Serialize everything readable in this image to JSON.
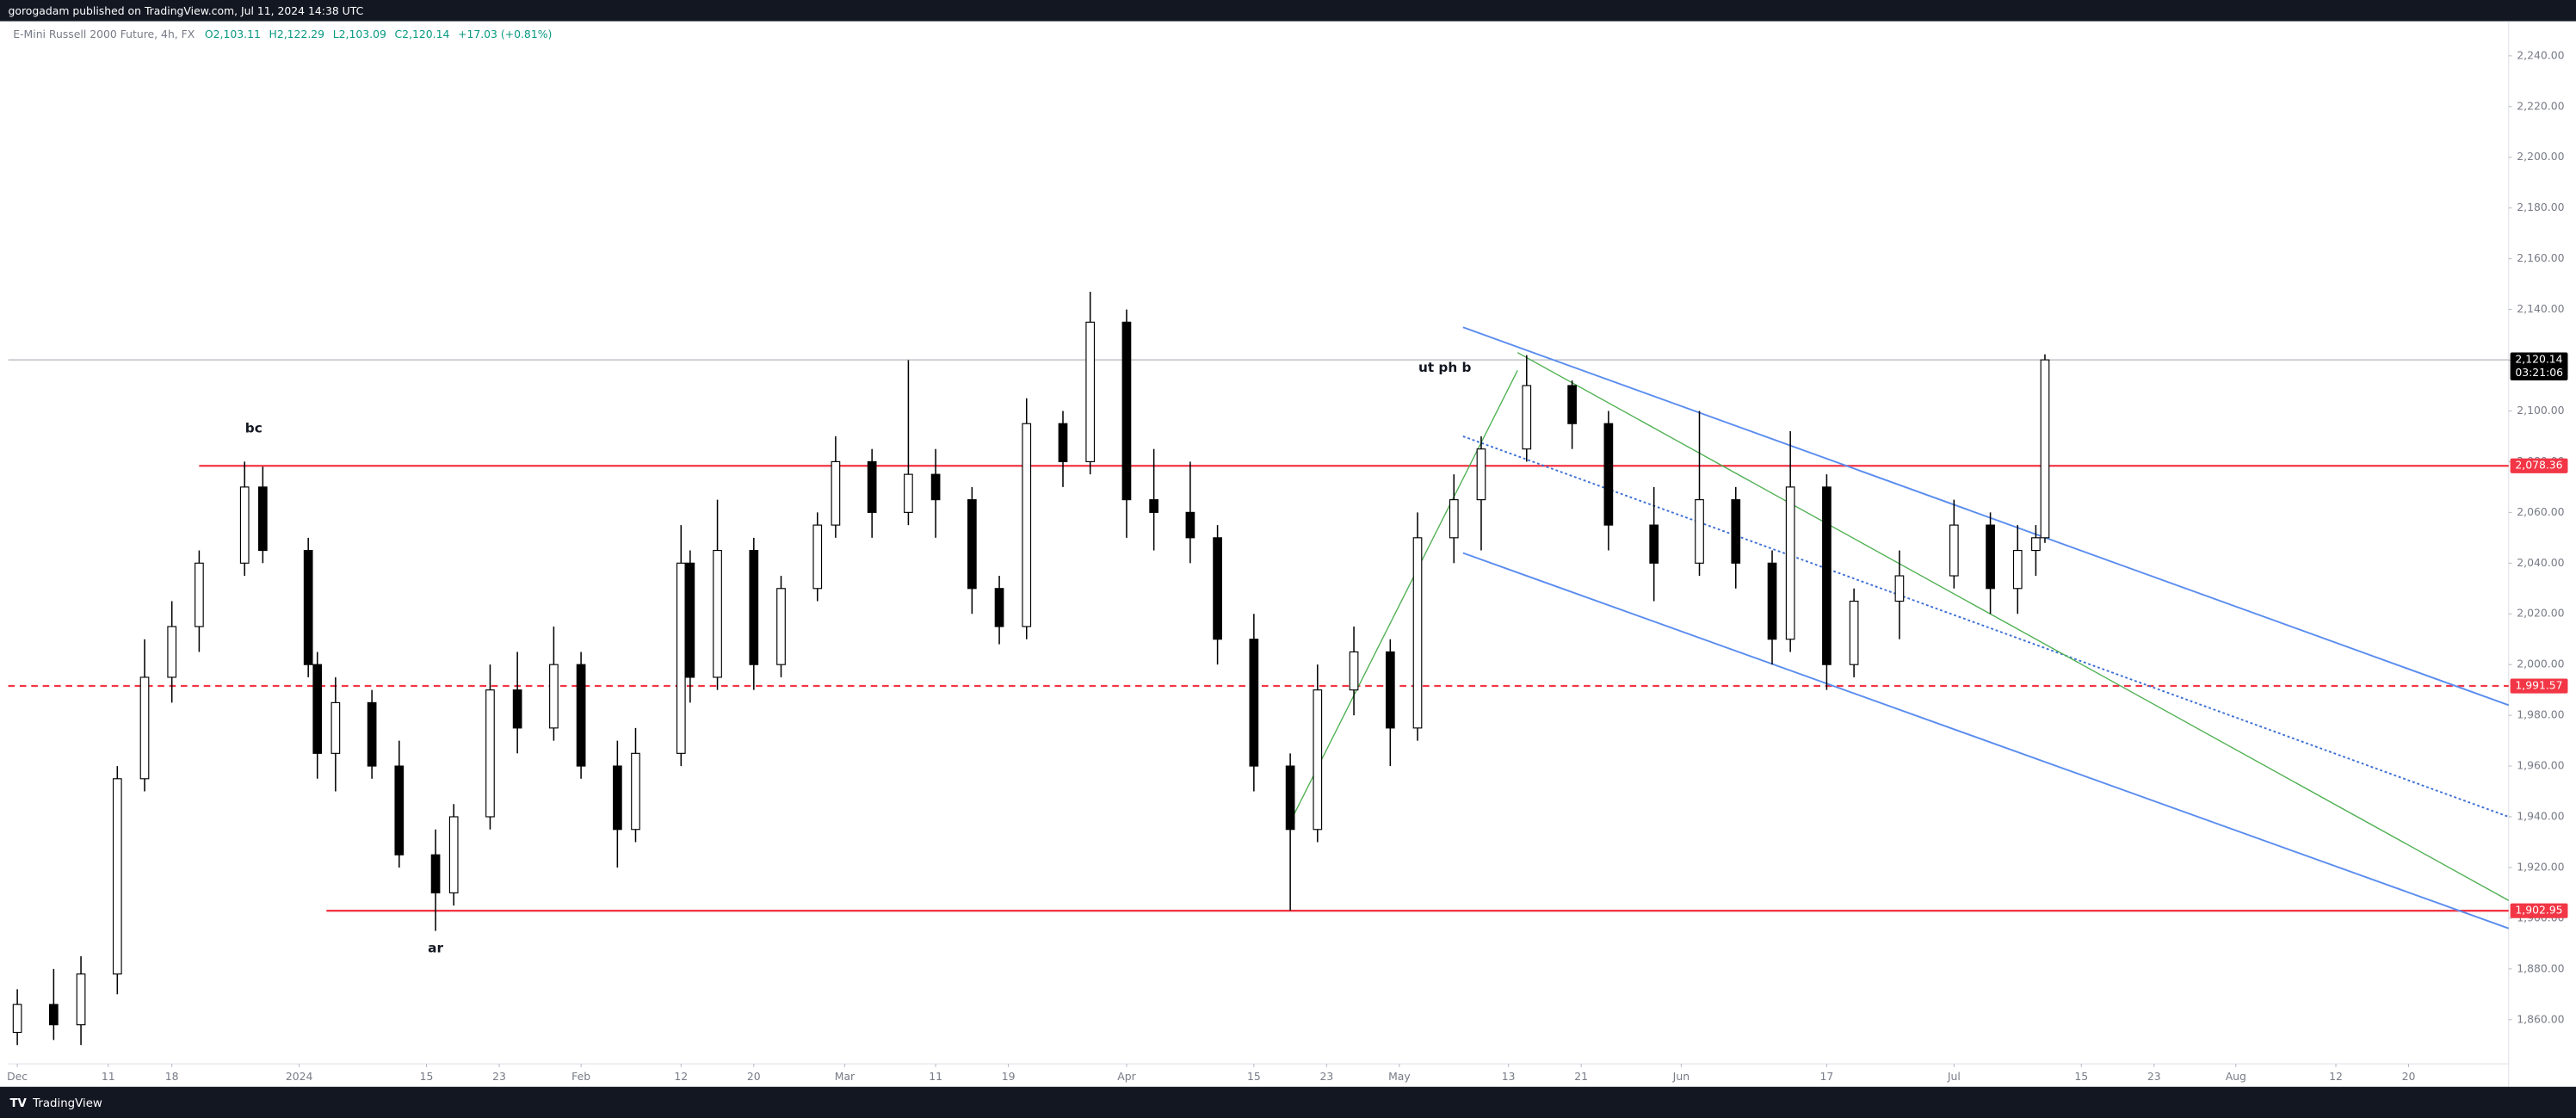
{
  "header": {
    "published": "gorogadam published on TradingView.com, Jul 11, 2024 14:38 UTC"
  },
  "footer": {
    "brand": "TradingView"
  },
  "chart_data": {
    "type": "candlestick",
    "title": "E-Mini Russell 2000 Future, 4h, FX",
    "ohlc_header": [
      "O2,103.11",
      "H2,122.29",
      "L2,103.09",
      "C2,120.14",
      "+17.03 (+0.81%)"
    ],
    "up_color": "#ffffff",
    "down_color": "#000000",
    "outline_color": "#000000",
    "xlim": [
      "2023-11-30",
      "2024-08-31"
    ],
    "xticks": [
      {
        "value": "2023-12-01",
        "label": "Dec"
      },
      {
        "value": "2023-12-11",
        "label": "11"
      },
      {
        "value": "2023-12-18",
        "label": "18"
      },
      {
        "value": "2024-01-01",
        "label": "2024"
      },
      {
        "value": "2024-01-15",
        "label": "15"
      },
      {
        "value": "2024-01-23",
        "label": "23"
      },
      {
        "value": "2024-02-01",
        "label": "Feb"
      },
      {
        "value": "2024-02-12",
        "label": "12"
      },
      {
        "value": "2024-02-20",
        "label": "20"
      },
      {
        "value": "2024-03-01",
        "label": "Mar"
      },
      {
        "value": "2024-03-11",
        "label": "11"
      },
      {
        "value": "2024-03-19",
        "label": "19"
      },
      {
        "value": "2024-04-01",
        "label": "Apr"
      },
      {
        "value": "2024-04-15",
        "label": "15"
      },
      {
        "value": "2024-04-23",
        "label": "23"
      },
      {
        "value": "2024-05-01",
        "label": "May"
      },
      {
        "value": "2024-05-13",
        "label": "13"
      },
      {
        "value": "2024-05-21",
        "label": "21"
      },
      {
        "value": "2024-06-01",
        "label": "Jun"
      },
      {
        "value": "2024-06-17",
        "label": "17"
      },
      {
        "value": "2024-07-01",
        "label": "Jul"
      },
      {
        "value": "2024-07-15",
        "label": "15"
      },
      {
        "value": "2024-07-23",
        "label": "23"
      },
      {
        "value": "2024-08-01",
        "label": "Aug"
      },
      {
        "value": "2024-08-12",
        "label": "12"
      },
      {
        "value": "2024-08-20",
        "label": "20"
      }
    ],
    "ylim": [
      1842.6,
      2253.6
    ],
    "yticks": [
      {
        "value": 1860,
        "label": "1,860.00"
      },
      {
        "value": 1880,
        "label": "1,880.00"
      },
      {
        "value": 1900,
        "label": "1,900.00"
      },
      {
        "value": 1920,
        "label": "1,920.00"
      },
      {
        "value": 1940,
        "label": "1,940.00"
      },
      {
        "value": 1960,
        "label": "1,960.00"
      },
      {
        "value": 1980,
        "label": "1,980.00"
      },
      {
        "value": 2000,
        "label": "2,000.00"
      },
      {
        "value": 2020,
        "label": "2,020.00"
      },
      {
        "value": 2040,
        "label": "2,040.00"
      },
      {
        "value": 2060,
        "label": "2,060.00"
      },
      {
        "value": 2080,
        "label": "2,080.00"
      },
      {
        "value": 2100,
        "label": "2,100.00"
      },
      {
        "value": 2120,
        "label": "2,120.00"
      },
      {
        "value": 2140,
        "label": "2,140.00"
      },
      {
        "value": 2160,
        "label": "2,160.00"
      },
      {
        "value": 2180,
        "label": "2,180.00"
      },
      {
        "value": 2200,
        "label": "2,200.00"
      },
      {
        "value": 2220,
        "label": "2,220.00"
      },
      {
        "value": 2240,
        "label": "2,240.00"
      }
    ],
    "candles": [
      {
        "date": "2023-12-01",
        "open": 1855,
        "high": 1872,
        "low": 1850,
        "close": 1866
      },
      {
        "date": "2023-12-05",
        "open": 1866,
        "high": 1880,
        "low": 1852,
        "close": 1858
      },
      {
        "date": "2023-12-08",
        "open": 1858,
        "high": 1885,
        "low": 1850,
        "close": 1878
      },
      {
        "date": "2023-12-12",
        "open": 1878,
        "high": 1960,
        "low": 1870,
        "close": 1955
      },
      {
        "date": "2023-12-15",
        "open": 1955,
        "high": 2010,
        "low": 1950,
        "close": 1995
      },
      {
        "date": "2023-12-18",
        "open": 1995,
        "high": 2025,
        "low": 1985,
        "close": 2015
      },
      {
        "date": "2023-12-21",
        "open": 2015,
        "high": 2045,
        "low": 2005,
        "close": 2040
      },
      {
        "date": "2023-12-26",
        "open": 2040,
        "high": 2080,
        "low": 2035,
        "close": 2070
      },
      {
        "date": "2023-12-28",
        "open": 2070,
        "high": 2078,
        "low": 2040,
        "close": 2045
      },
      {
        "date": "2024-01-02",
        "open": 2045,
        "high": 2050,
        "low": 1995,
        "close": 2000
      },
      {
        "date": "2024-01-03",
        "open": 2000,
        "high": 2005,
        "low": 1955,
        "close": 1965
      },
      {
        "date": "2024-01-05",
        "open": 1965,
        "high": 1995,
        "low": 1950,
        "close": 1985
      },
      {
        "date": "2024-01-09",
        "open": 1985,
        "high": 1990,
        "low": 1955,
        "close": 1960
      },
      {
        "date": "2024-01-12",
        "open": 1960,
        "high": 1970,
        "low": 1920,
        "close": 1925
      },
      {
        "date": "2024-01-16",
        "open": 1925,
        "high": 1935,
        "low": 1895,
        "close": 1910
      },
      {
        "date": "2024-01-18",
        "open": 1910,
        "high": 1945,
        "low": 1905,
        "close": 1940
      },
      {
        "date": "2024-01-22",
        "open": 1940,
        "high": 2000,
        "low": 1935,
        "close": 1990
      },
      {
        "date": "2024-01-25",
        "open": 1990,
        "high": 2005,
        "low": 1965,
        "close": 1975
      },
      {
        "date": "2024-01-29",
        "open": 1975,
        "high": 2015,
        "low": 1970,
        "close": 2000
      },
      {
        "date": "2024-02-01",
        "open": 2000,
        "high": 2005,
        "low": 1955,
        "close": 1960
      },
      {
        "date": "2024-02-05",
        "open": 1960,
        "high": 1970,
        "low": 1920,
        "close": 1935
      },
      {
        "date": "2024-02-07",
        "open": 1935,
        "high": 1975,
        "low": 1930,
        "close": 1965
      },
      {
        "date": "2024-02-12",
        "open": 1965,
        "high": 2055,
        "low": 1960,
        "close": 2040
      },
      {
        "date": "2024-02-13",
        "open": 2040,
        "high": 2045,
        "low": 1985,
        "close": 1995
      },
      {
        "date": "2024-02-16",
        "open": 1995,
        "high": 2065,
        "low": 1990,
        "close": 2045
      },
      {
        "date": "2024-02-20",
        "open": 2045,
        "high": 2050,
        "low": 1990,
        "close": 2000
      },
      {
        "date": "2024-02-23",
        "open": 2000,
        "high": 2035,
        "low": 1995,
        "close": 2030
      },
      {
        "date": "2024-02-27",
        "open": 2030,
        "high": 2060,
        "low": 2025,
        "close": 2055
      },
      {
        "date": "2024-02-29",
        "open": 2055,
        "high": 2090,
        "low": 2050,
        "close": 2080
      },
      {
        "date": "2024-03-04",
        "open": 2080,
        "high": 2085,
        "low": 2050,
        "close": 2060
      },
      {
        "date": "2024-03-08",
        "open": 2060,
        "high": 2120,
        "low": 2055,
        "close": 2075
      },
      {
        "date": "2024-03-11",
        "open": 2075,
        "high": 2085,
        "low": 2050,
        "close": 2065
      },
      {
        "date": "2024-03-15",
        "open": 2065,
        "high": 2070,
        "low": 2020,
        "close": 2030
      },
      {
        "date": "2024-03-18",
        "open": 2030,
        "high": 2035,
        "low": 2008,
        "close": 2015
      },
      {
        "date": "2024-03-21",
        "open": 2015,
        "high": 2105,
        "low": 2010,
        "close": 2095
      },
      {
        "date": "2024-03-25",
        "open": 2095,
        "high": 2100,
        "low": 2070,
        "close": 2080
      },
      {
        "date": "2024-03-28",
        "open": 2080,
        "high": 2147,
        "low": 2075,
        "close": 2135
      },
      {
        "date": "2024-04-01",
        "open": 2135,
        "high": 2140,
        "low": 2050,
        "close": 2065
      },
      {
        "date": "2024-04-04",
        "open": 2065,
        "high": 2085,
        "low": 2045,
        "close": 2060
      },
      {
        "date": "2024-04-08",
        "open": 2060,
        "high": 2080,
        "low": 2040,
        "close": 2050
      },
      {
        "date": "2024-04-11",
        "open": 2050,
        "high": 2055,
        "low": 2000,
        "close": 2010
      },
      {
        "date": "2024-04-15",
        "open": 2010,
        "high": 2020,
        "low": 1950,
        "close": 1960
      },
      {
        "date": "2024-04-19",
        "open": 1960,
        "high": 1965,
        "low": 1903,
        "close": 1935
      },
      {
        "date": "2024-04-22",
        "open": 1935,
        "high": 2000,
        "low": 1930,
        "close": 1990
      },
      {
        "date": "2024-04-26",
        "open": 1990,
        "high": 2015,
        "low": 1980,
        "close": 2005
      },
      {
        "date": "2024-04-30",
        "open": 2005,
        "high": 2010,
        "low": 1960,
        "close": 1975
      },
      {
        "date": "2024-05-03",
        "open": 1975,
        "high": 2060,
        "low": 1970,
        "close": 2050
      },
      {
        "date": "2024-05-07",
        "open": 2050,
        "high": 2075,
        "low": 2040,
        "close": 2065
      },
      {
        "date": "2024-05-10",
        "open": 2065,
        "high": 2090,
        "low": 2045,
        "close": 2085
      },
      {
        "date": "2024-05-15",
        "open": 2085,
        "high": 2122,
        "low": 2080,
        "close": 2110
      },
      {
        "date": "2024-05-20",
        "open": 2110,
        "high": 2112,
        "low": 2085,
        "close": 2095
      },
      {
        "date": "2024-05-24",
        "open": 2095,
        "high": 2100,
        "low": 2045,
        "close": 2055
      },
      {
        "date": "2024-05-29",
        "open": 2055,
        "high": 2070,
        "low": 2025,
        "close": 2040
      },
      {
        "date": "2024-06-03",
        "open": 2040,
        "high": 2100,
        "low": 2035,
        "close": 2065
      },
      {
        "date": "2024-06-07",
        "open": 2065,
        "high": 2070,
        "low": 2030,
        "close": 2040
      },
      {
        "date": "2024-06-11",
        "open": 2040,
        "high": 2045,
        "low": 2000,
        "close": 2010
      },
      {
        "date": "2024-06-13",
        "open": 2010,
        "high": 2092,
        "low": 2005,
        "close": 2070
      },
      {
        "date": "2024-06-17",
        "open": 2070,
        "high": 2075,
        "low": 1990,
        "close": 2000
      },
      {
        "date": "2024-06-20",
        "open": 2000,
        "high": 2030,
        "low": 1995,
        "close": 2025
      },
      {
        "date": "2024-06-25",
        "open": 2025,
        "high": 2045,
        "low": 2010,
        "close": 2035
      },
      {
        "date": "2024-07-01",
        "open": 2035,
        "high": 2065,
        "low": 2030,
        "close": 2055
      },
      {
        "date": "2024-07-05",
        "open": 2055,
        "high": 2060,
        "low": 2020,
        "close": 2030
      },
      {
        "date": "2024-07-08",
        "open": 2030,
        "high": 2055,
        "low": 2020,
        "close": 2045
      },
      {
        "date": "2024-07-10",
        "open": 2045,
        "high": 2055,
        "low": 2035,
        "close": 2050
      },
      {
        "date": "2024-07-11",
        "open": 2050,
        "high": 2122.29,
        "low": 2048,
        "close": 2120.14
      }
    ],
    "levels": [
      {
        "price": 2078.36,
        "label": "2,078.36",
        "from": "2023-12-21",
        "style": "solid",
        "color": "#f23645"
      },
      {
        "price": 1991.57,
        "label": "1,991.57",
        "from": "2023-11-30",
        "style": "dashed",
        "color": "#f23645"
      },
      {
        "price": 1902.95,
        "label": "1,902.95",
        "from": "2024-01-04",
        "style": "solid",
        "color": "#f23645"
      }
    ],
    "last_price": {
      "value": 2120.14,
      "label": "2,120.14",
      "countdown": "03:21:06",
      "color": "#000000"
    },
    "trendlines": [
      {
        "from": [
          "2024-05-08",
          2133
        ],
        "to": [
          "2024-08-31",
          1984
        ],
        "color": "#5b8def",
        "style": "solid"
      },
      {
        "from": [
          "2024-05-08",
          2044
        ],
        "to": [
          "2024-08-31",
          1896
        ],
        "color": "#5b8def",
        "style": "solid"
      },
      {
        "from": [
          "2024-05-08",
          2090
        ],
        "to": [
          "2024-08-31",
          1940
        ],
        "color": "#3d6fd6",
        "style": "dotted"
      },
      {
        "from": [
          "2024-05-14",
          2123
        ],
        "to": [
          "2024-08-31",
          1907
        ],
        "color": "#4caf50",
        "style": "solid"
      },
      {
        "from": [
          "2024-04-19",
          1938
        ],
        "to": [
          "2024-05-14",
          2116
        ],
        "color": "#4caf50",
        "style": "solid"
      }
    ],
    "annotations": [
      {
        "text": "bc",
        "date": "2023-12-27",
        "price": 2093
      },
      {
        "text": "ar",
        "date": "2024-01-16",
        "price": 1888
      },
      {
        "text": "ut ph b",
        "date": "2024-05-06",
        "price": 2117
      }
    ]
  }
}
